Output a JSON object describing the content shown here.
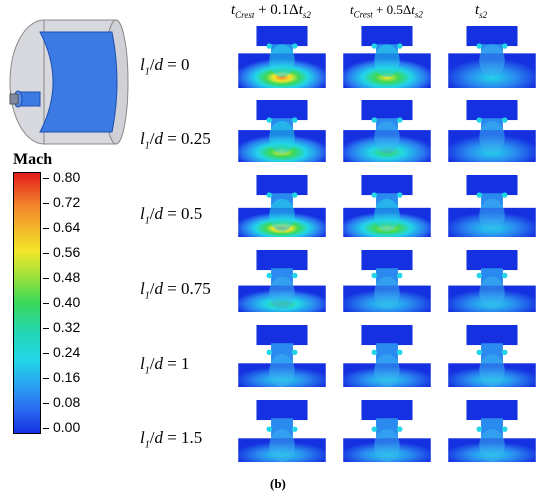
{
  "columns": [
    {
      "base": "t",
      "sub": "Crest",
      "rest": " + 0.1Δ",
      "rest_var": "t",
      "rest_sub": "s2"
    },
    {
      "base": "t",
      "sub": "Crest",
      "rest": " + 0.5Δ",
      "rest_var": "t",
      "rest_sub": "s2"
    },
    {
      "base": "t",
      "sub": "s2",
      "rest": "",
      "rest_var": "",
      "rest_sub": ""
    }
  ],
  "rows": [
    {
      "var": "l",
      "sub": "1",
      "slash": "/",
      "d": "d",
      "eq": " = 0"
    },
    {
      "var": "l",
      "sub": "1",
      "slash": "/",
      "d": "d",
      "eq": " = 0.25"
    },
    {
      "var": "l",
      "sub": "1",
      "slash": "/",
      "d": "d",
      "eq": " = 0.5"
    },
    {
      "var": "l",
      "sub": "1",
      "slash": "/",
      "d": "d",
      "eq": " = 0.75"
    },
    {
      "var": "l",
      "sub": "1",
      "slash": "/",
      "d": "d",
      "eq": " = 1"
    },
    {
      "var": "l",
      "sub": "1",
      "slash": "/",
      "d": "d",
      "eq": " = 1.5"
    }
  ],
  "legend": {
    "title": "Mach",
    "ticks": [
      "0.80",
      "0.72",
      "0.64",
      "0.56",
      "0.48",
      "0.40",
      "0.32",
      "0.24",
      "0.16",
      "0.08",
      "0.00"
    ]
  },
  "subfigure_label": "(b)",
  "colors": {
    "deep_blue": "#1530e0",
    "cyan": "#22d6e8",
    "green": "#39d85a",
    "yellow": "#f2e62a",
    "orange": "#f2822a",
    "red": "#e21c1c"
  }
}
